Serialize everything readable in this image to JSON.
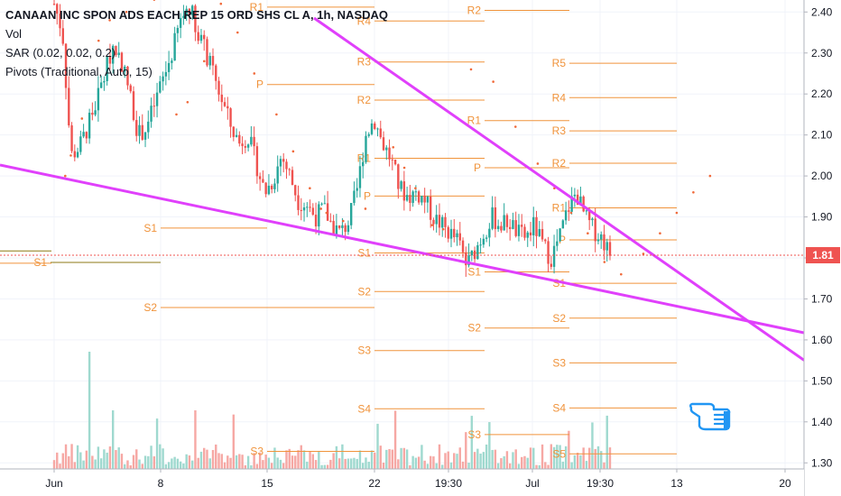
{
  "legend": {
    "title": "CANAAN INC SPON ADS EACH REP 15 ORD SHS CL A, 1h, NASDAQ",
    "vol": "Vol",
    "sar": "SAR (0.02, 0.02, 0.2)",
    "pivots": "Pivots (Traditional, Auto, 15)"
  },
  "last_price": "1.81",
  "colors": {
    "up": "#26a69a",
    "down": "#ef5350",
    "pivot": "#f0933b",
    "sar": "#f06a3b",
    "trendline": "#e040fb",
    "hand": "#2196f3"
  },
  "hand_icon": "pointing-hand-icon",
  "chart_data": {
    "type": "candlestick",
    "title": "CANAAN INC SPON ADS EACH REP 15 ORD SHS CL A, 1h, NASDAQ",
    "y_axis": {
      "ticks": [
        "2.40",
        "2.30",
        "2.20",
        "2.10",
        "2.00",
        "1.90",
        "1.80",
        "1.70",
        "1.60",
        "1.50",
        "1.40",
        "1.30"
      ],
      "range": [
        1.28,
        2.44
      ]
    },
    "x_axis": {
      "ticks": [
        "Jun",
        "8",
        "15",
        "22",
        "19:30",
        "Jul",
        "19:30",
        "13",
        "20"
      ]
    },
    "current_price": 1.81,
    "price_path": [
      2.42,
      2.35,
      2.05,
      2.07,
      2.12,
      2.18,
      2.25,
      2.32,
      2.28,
      2.2,
      2.1,
      2.12,
      2.18,
      2.24,
      2.3,
      2.38,
      2.42,
      2.36,
      2.3,
      2.24,
      2.18,
      2.12,
      2.08,
      2.1,
      2.03,
      1.96,
      1.99,
      2.05,
      2.0,
      1.94,
      1.93,
      1.9,
      1.92,
      1.88,
      1.86,
      1.89,
      1.97,
      2.1,
      2.14,
      2.08,
      2.04,
      1.97,
      1.95,
      1.96,
      1.94,
      1.9,
      1.88,
      1.86,
      1.84,
      1.78,
      1.82,
      1.86,
      1.9,
      1.88,
      1.89,
      1.86,
      1.85,
      1.88,
      1.83,
      1.8,
      1.85,
      1.92,
      1.96,
      1.9,
      1.87,
      1.85,
      1.81
    ],
    "sar_points": [
      [
        0.02,
        2.0
      ],
      [
        0.03,
        2.05
      ],
      [
        0.05,
        2.14
      ],
      [
        0.08,
        2.33
      ],
      [
        0.1,
        2.38
      ],
      [
        0.13,
        2.4
      ],
      [
        0.18,
        2.43
      ],
      [
        0.22,
        2.15
      ],
      [
        0.24,
        2.18
      ],
      [
        0.27,
        2.28
      ],
      [
        0.3,
        2.42
      ],
      [
        0.33,
        2.35
      ],
      [
        0.36,
        2.25
      ],
      [
        0.4,
        2.15
      ],
      [
        0.43,
        2.06
      ],
      [
        0.46,
        1.97
      ],
      [
        0.48,
        1.92
      ],
      [
        0.49,
        1.91
      ],
      [
        0.52,
        1.89
      ],
      [
        0.56,
        1.92
      ],
      [
        0.61,
        2.07
      ],
      [
        0.63,
        2.02
      ],
      [
        0.65,
        1.97
      ],
      [
        0.68,
        1.88
      ],
      [
        0.7,
        1.87
      ],
      [
        0.75,
        2.26
      ],
      [
        0.79,
        2.23
      ],
      [
        0.83,
        2.12
      ],
      [
        0.87,
        2.03
      ],
      [
        0.9,
        1.97
      ],
      [
        0.93,
        1.91
      ],
      [
        0.96,
        1.86
      ],
      [
        0.99,
        1.79
      ],
      [
        1.02,
        1.76
      ],
      [
        1.06,
        1.81
      ],
      [
        1.09,
        1.86
      ],
      [
        1.12,
        1.91
      ],
      [
        1.15,
        1.96
      ],
      [
        1.18,
        2.0
      ]
    ],
    "trendlines": [
      {
        "name": "descending trendline",
        "from": [
          "May 30",
          2.55
        ],
        "to": [
          "Jul 22",
          1.5
        ]
      },
      {
        "name": "lower trendline",
        "from": [
          "May 28",
          2.04
        ],
        "to": [
          "Jul 22",
          1.62
        ]
      }
    ],
    "pivot_levels": [
      {
        "label": "S1",
        "value": 1.817
      },
      {
        "label": "S1",
        "value": 1.789
      },
      {
        "label": "S2",
        "value": 1.787
      },
      {
        "label": "R1",
        "value": 2.412
      },
      {
        "label": "P",
        "value": 2.223
      },
      {
        "label": "S1",
        "value": 1.873
      },
      {
        "label": "S2",
        "value": 1.679
      },
      {
        "label": "S3",
        "value": 1.328
      },
      {
        "label": "R4",
        "value": 2.378
      },
      {
        "label": "R3",
        "value": 2.278
      },
      {
        "label": "R2",
        "value": 2.185
      },
      {
        "label": "R1",
        "value": 2.043
      },
      {
        "label": "P",
        "value": 1.951
      },
      {
        "label": "S1",
        "value": 1.812
      },
      {
        "label": "S2",
        "value": 1.718
      },
      {
        "label": "S3",
        "value": 1.574
      },
      {
        "label": "S4",
        "value": 1.432
      },
      {
        "label": "R2",
        "value": 2.404
      },
      {
        "label": "R1",
        "value": 2.135
      },
      {
        "label": "P",
        "value": 2.02
      },
      {
        "label": "S1",
        "value": 1.766
      },
      {
        "label": "S2",
        "value": 1.629
      },
      {
        "label": "S3",
        "value": 1.369
      },
      {
        "label": "R5",
        "value": 2.275
      },
      {
        "label": "R4",
        "value": 2.191
      },
      {
        "label": "R3",
        "value": 2.11
      },
      {
        "label": "R2",
        "value": 2.031
      },
      {
        "label": "R1",
        "value": 1.922
      },
      {
        "label": "P",
        "value": 1.844
      },
      {
        "label": "S1",
        "value": 1.738
      },
      {
        "label": "S2",
        "value": 1.653
      },
      {
        "label": "S3",
        "value": 1.544
      },
      {
        "label": "S4",
        "value": 1.434
      },
      {
        "label": "S5",
        "value": 1.322
      }
    ]
  }
}
